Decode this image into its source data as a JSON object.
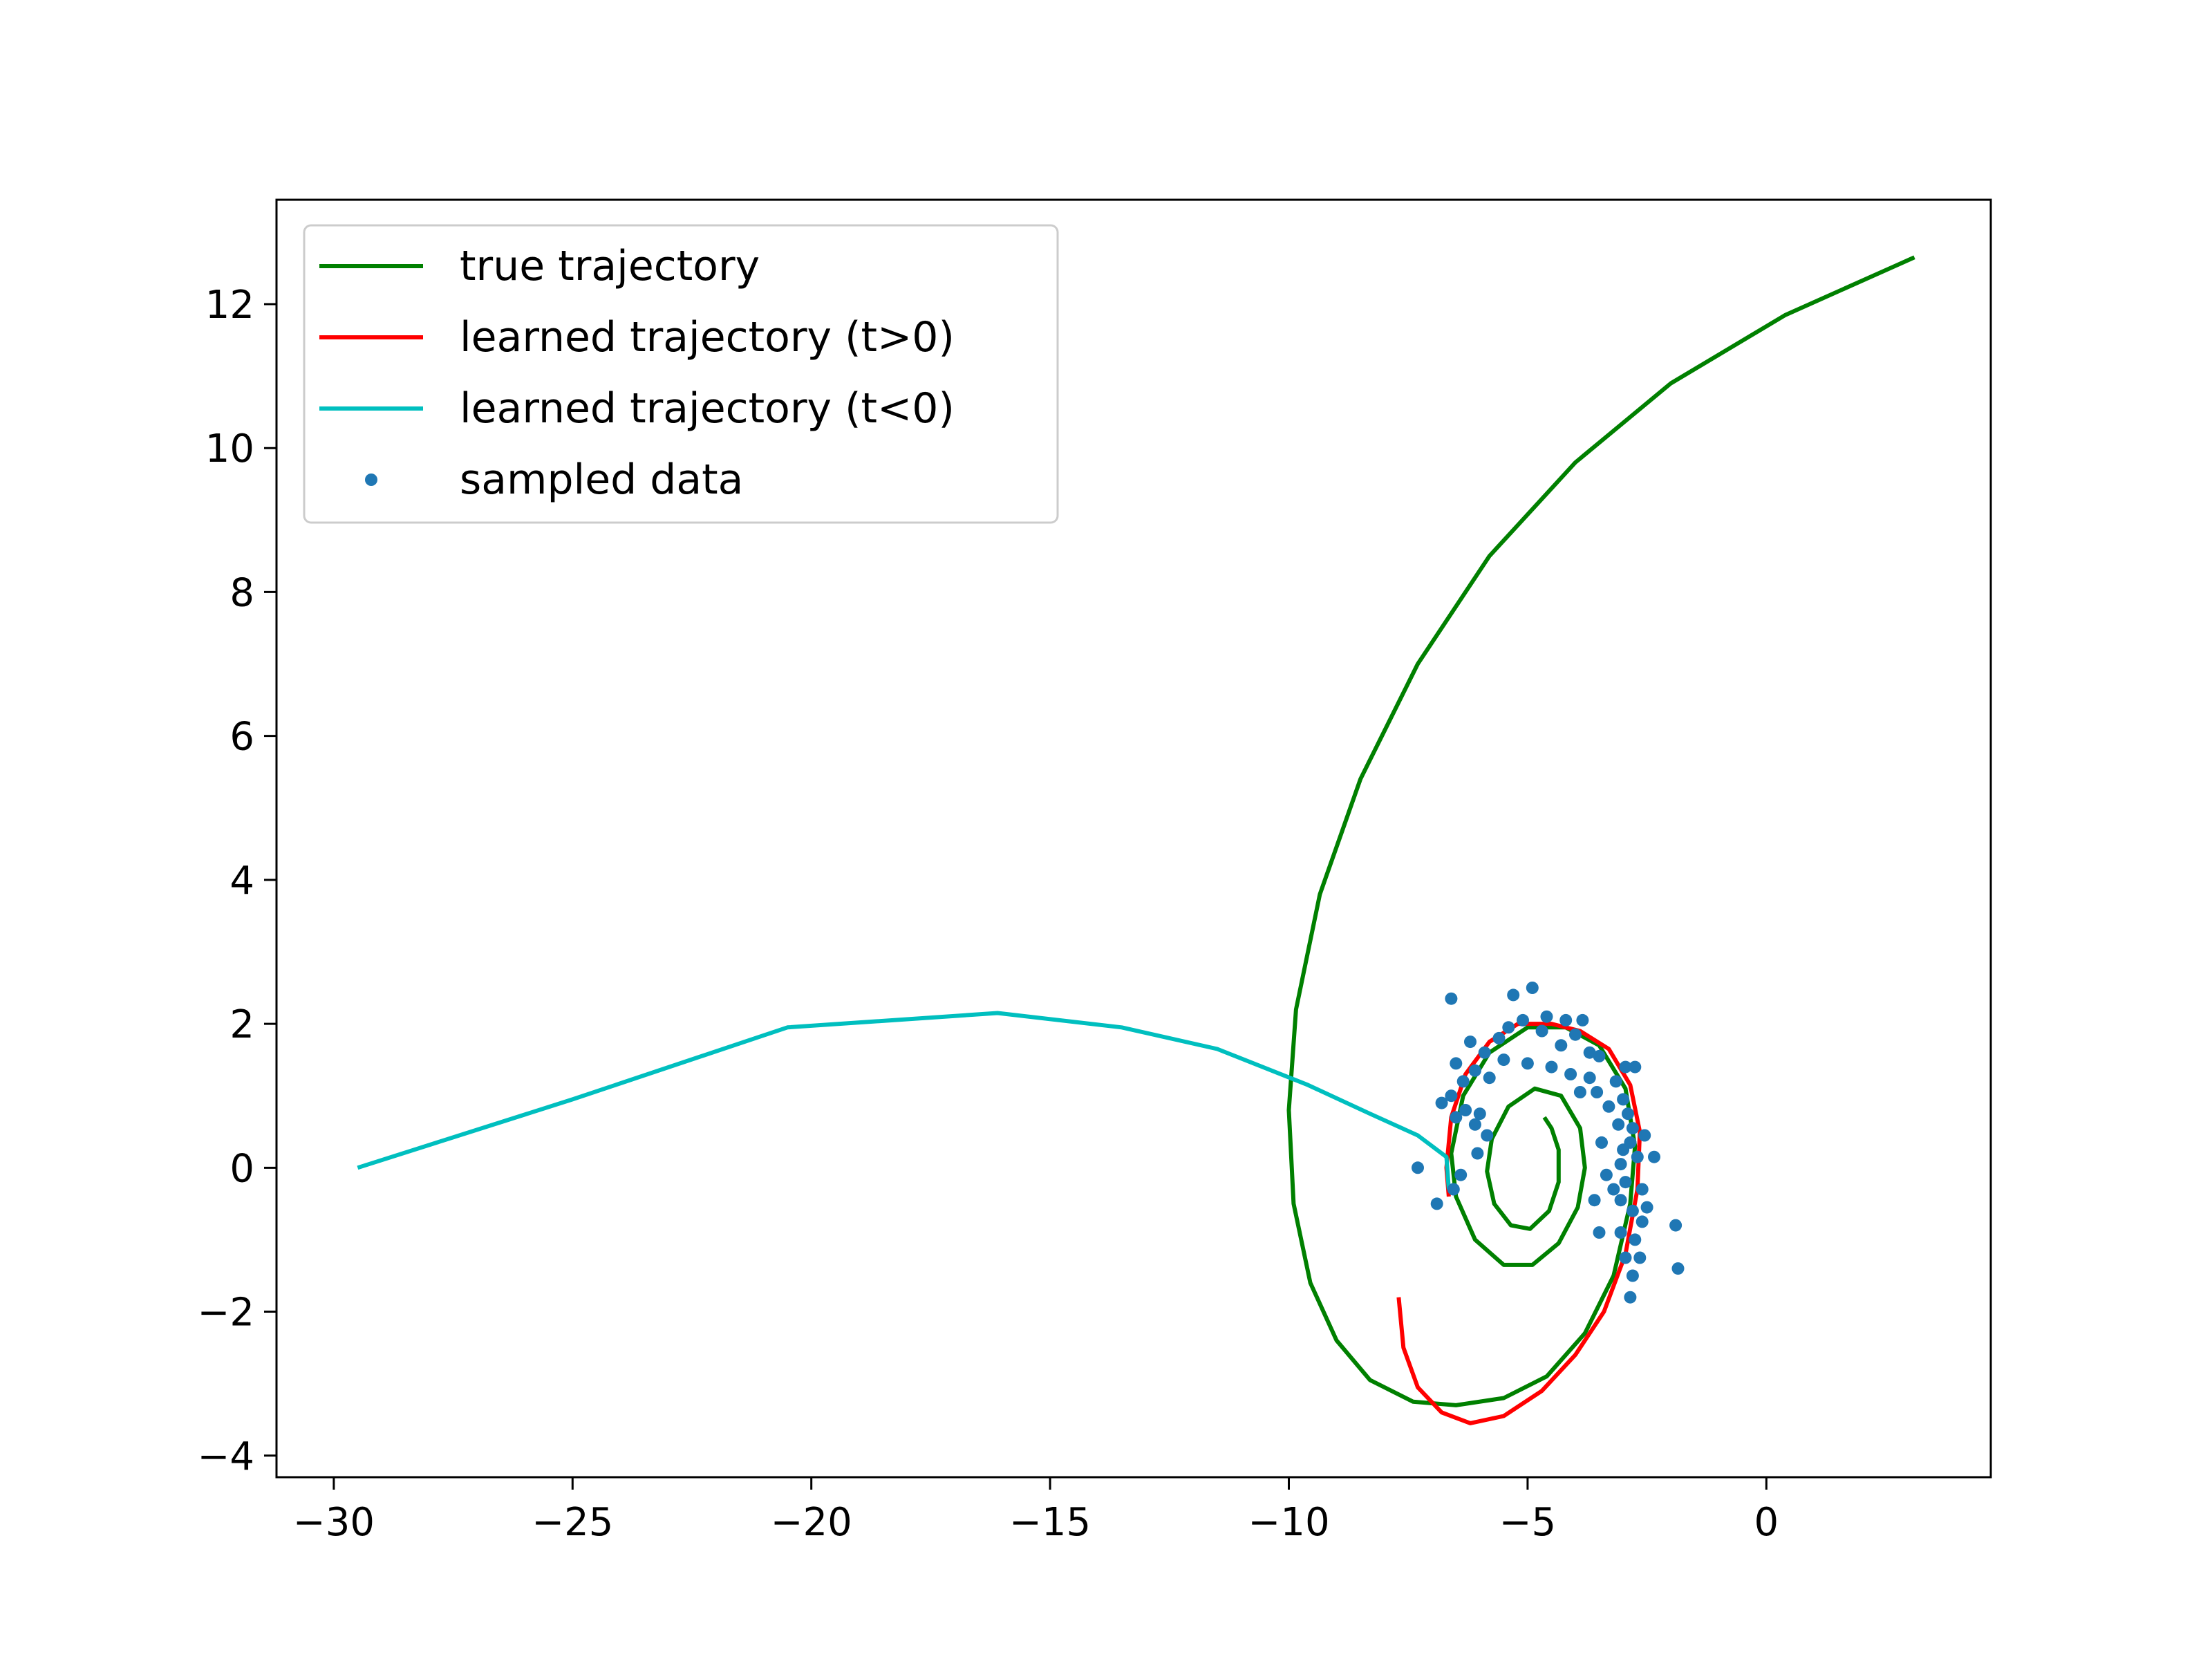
{
  "chart_data": {
    "type": "line",
    "title": "",
    "xlabel": "",
    "ylabel": "",
    "xlim": [
      -31.2,
      4.7
    ],
    "ylim": [
      -4.3,
      13.45
    ],
    "grid": false,
    "legend_position": "top-left",
    "x_ticks": [
      {
        "value": -30,
        "label": "−30"
      },
      {
        "value": -25,
        "label": "−25"
      },
      {
        "value": -20,
        "label": "−20"
      },
      {
        "value": -15,
        "label": "−15"
      },
      {
        "value": -10,
        "label": "−10"
      },
      {
        "value": -5,
        "label": "−5"
      },
      {
        "value": 0,
        "label": "0"
      }
    ],
    "y_ticks": [
      {
        "value": -4,
        "label": "−4"
      },
      {
        "value": -2,
        "label": "−2"
      },
      {
        "value": 0,
        "label": "0"
      },
      {
        "value": 2,
        "label": "2"
      },
      {
        "value": 4,
        "label": "4"
      },
      {
        "value": 6,
        "label": "6"
      },
      {
        "value": 8,
        "label": "8"
      },
      {
        "value": 10,
        "label": "10"
      },
      {
        "value": 12,
        "label": "12"
      }
    ],
    "series": [
      {
        "name": "true trajectory",
        "kind": "line",
        "color": "#008000",
        "points": [
          [
            3.1,
            12.65
          ],
          [
            0.4,
            11.85
          ],
          [
            -2.0,
            10.9
          ],
          [
            -4.0,
            9.8
          ],
          [
            -5.8,
            8.5
          ],
          [
            -7.3,
            7.0
          ],
          [
            -8.5,
            5.4
          ],
          [
            -9.35,
            3.8
          ],
          [
            -9.85,
            2.2
          ],
          [
            -10.0,
            0.8
          ],
          [
            -9.9,
            -0.5
          ],
          [
            -9.55,
            -1.6
          ],
          [
            -9.0,
            -2.4
          ],
          [
            -8.3,
            -2.95
          ],
          [
            -7.4,
            -3.25
          ],
          [
            -6.5,
            -3.3
          ],
          [
            -5.5,
            -3.2
          ],
          [
            -4.6,
            -2.9
          ],
          [
            -3.8,
            -2.3
          ],
          [
            -3.2,
            -1.5
          ],
          [
            -2.85,
            -0.5
          ],
          [
            -2.75,
            0.3
          ],
          [
            -2.95,
            1.1
          ],
          [
            -3.5,
            1.7
          ],
          [
            -4.2,
            1.95
          ],
          [
            -5.0,
            1.95
          ],
          [
            -5.8,
            1.6
          ],
          [
            -6.35,
            1.0
          ],
          [
            -6.6,
            0.2
          ],
          [
            -6.5,
            -0.4
          ],
          [
            -6.1,
            -1.0
          ],
          [
            -5.5,
            -1.35
          ],
          [
            -4.9,
            -1.35
          ],
          [
            -4.35,
            -1.05
          ],
          [
            -3.95,
            -0.55
          ],
          [
            -3.8,
            0.0
          ],
          [
            -3.9,
            0.55
          ],
          [
            -4.3,
            1.0
          ],
          [
            -4.85,
            1.1
          ],
          [
            -5.4,
            0.85
          ],
          [
            -5.75,
            0.4
          ],
          [
            -5.85,
            -0.05
          ],
          [
            -5.7,
            -0.5
          ],
          [
            -5.35,
            -0.8
          ],
          [
            -4.95,
            -0.85
          ],
          [
            -4.55,
            -0.6
          ],
          [
            -4.35,
            -0.2
          ],
          [
            -4.35,
            0.25
          ],
          [
            -4.5,
            0.55
          ],
          [
            -4.65,
            0.7
          ]
        ]
      },
      {
        "name": "learned trajectory (t>0)",
        "kind": "line",
        "color": "#ff0000",
        "points": [
          [
            -7.7,
            -1.8
          ],
          [
            -7.6,
            -2.5
          ],
          [
            -7.3,
            -3.05
          ],
          [
            -6.8,
            -3.4
          ],
          [
            -6.2,
            -3.55
          ],
          [
            -5.5,
            -3.45
          ],
          [
            -4.7,
            -3.1
          ],
          [
            -4.0,
            -2.6
          ],
          [
            -3.4,
            -2.0
          ],
          [
            -2.95,
            -1.2
          ],
          [
            -2.7,
            -0.3
          ],
          [
            -2.65,
            0.5
          ],
          [
            -2.85,
            1.15
          ],
          [
            -3.3,
            1.65
          ],
          [
            -3.9,
            1.9
          ],
          [
            -4.5,
            2.0
          ],
          [
            -5.2,
            2.0
          ],
          [
            -5.8,
            1.75
          ],
          [
            -6.3,
            1.3
          ],
          [
            -6.6,
            0.7
          ],
          [
            -6.7,
            0.0
          ],
          [
            -6.65,
            -0.4
          ]
        ]
      },
      {
        "name": "learned trajectory (t<0)",
        "kind": "line",
        "color": "#00bfbf",
        "points": [
          [
            -29.5,
            0.0
          ],
          [
            -25.0,
            0.95
          ],
          [
            -20.5,
            1.95
          ],
          [
            -16.1,
            2.15
          ],
          [
            -13.5,
            1.95
          ],
          [
            -11.5,
            1.65
          ],
          [
            -9.6,
            1.15
          ],
          [
            -8.3,
            0.75
          ],
          [
            -7.3,
            0.45
          ],
          [
            -6.7,
            0.15
          ],
          [
            -6.65,
            -0.3
          ]
        ]
      },
      {
        "name": "sampled data",
        "kind": "scatter",
        "color": "#1f77b4",
        "points": [
          [
            -6.6,
            2.35
          ],
          [
            -5.3,
            2.4
          ],
          [
            -4.9,
            2.5
          ],
          [
            -5.1,
            2.05
          ],
          [
            -5.4,
            1.95
          ],
          [
            -5.6,
            1.8
          ],
          [
            -4.6,
            2.1
          ],
          [
            -4.2,
            2.05
          ],
          [
            -4.7,
            1.9
          ],
          [
            -3.85,
            2.05
          ],
          [
            -4.0,
            1.85
          ],
          [
            -4.3,
            1.7
          ],
          [
            -3.7,
            1.6
          ],
          [
            -3.5,
            1.55
          ],
          [
            -5.9,
            1.6
          ],
          [
            -6.2,
            1.75
          ],
          [
            -6.5,
            1.45
          ],
          [
            -6.1,
            1.35
          ],
          [
            -5.8,
            1.25
          ],
          [
            -6.35,
            1.2
          ],
          [
            -6.6,
            1.0
          ],
          [
            -6.8,
            0.9
          ],
          [
            -6.3,
            0.8
          ],
          [
            -6.0,
            0.75
          ],
          [
            -6.5,
            0.7
          ],
          [
            -6.1,
            0.6
          ],
          [
            -5.85,
            0.45
          ],
          [
            -6.05,
            0.2
          ],
          [
            -6.4,
            -0.1
          ],
          [
            -7.3,
            0.0
          ],
          [
            -6.9,
            -0.5
          ],
          [
            -6.55,
            -0.3
          ],
          [
            -3.7,
            1.25
          ],
          [
            -3.55,
            1.05
          ],
          [
            -2.95,
            1.4
          ],
          [
            -2.75,
            1.4
          ],
          [
            -3.15,
            1.2
          ],
          [
            -3.0,
            0.95
          ],
          [
            -2.9,
            0.75
          ],
          [
            -3.3,
            0.85
          ],
          [
            -3.1,
            0.6
          ],
          [
            -2.8,
            0.55
          ],
          [
            -2.85,
            0.35
          ],
          [
            -3.0,
            0.25
          ],
          [
            -2.7,
            0.15
          ],
          [
            -2.35,
            0.15
          ],
          [
            -2.55,
            0.45
          ],
          [
            -3.05,
            0.05
          ],
          [
            -2.95,
            -0.2
          ],
          [
            -2.6,
            -0.3
          ],
          [
            -2.5,
            -0.55
          ],
          [
            -2.8,
            -0.6
          ],
          [
            -3.05,
            -0.45
          ],
          [
            -3.35,
            -0.1
          ],
          [
            -3.6,
            -0.45
          ],
          [
            -3.5,
            -0.9
          ],
          [
            -3.05,
            -0.9
          ],
          [
            -2.75,
            -1.0
          ],
          [
            -2.95,
            -1.25
          ],
          [
            -2.65,
            -1.25
          ],
          [
            -2.8,
            -1.5
          ],
          [
            -2.85,
            -1.8
          ],
          [
            -1.9,
            -0.8
          ],
          [
            -1.85,
            -1.4
          ],
          [
            -2.6,
            -0.75
          ],
          [
            -3.2,
            -0.3
          ],
          [
            -5.5,
            1.5
          ],
          [
            -5.0,
            1.45
          ],
          [
            -4.5,
            1.4
          ],
          [
            -4.1,
            1.3
          ],
          [
            -3.9,
            1.05
          ],
          [
            -3.45,
            0.35
          ]
        ]
      }
    ]
  }
}
